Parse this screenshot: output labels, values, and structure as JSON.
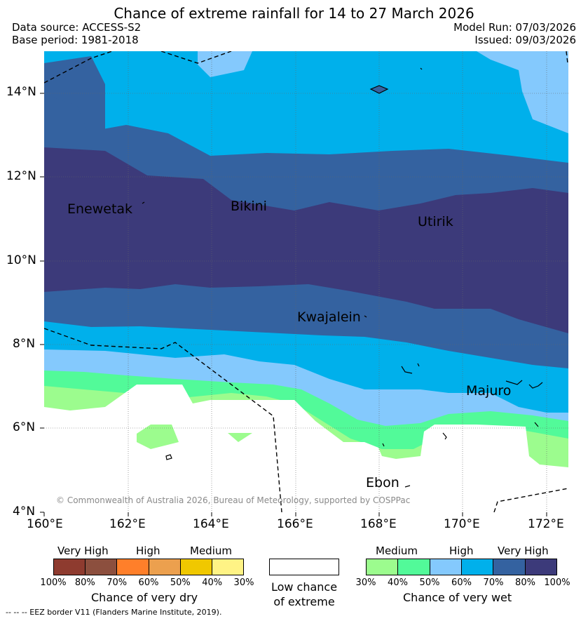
{
  "title": "Chance of extreme rainfall for 14 to 27 March 2026",
  "header": {
    "data_source": "Data source: ACCESS-S2",
    "base_period": "Base period: 1981-2018",
    "model_run": "Model Run: 07/03/2026",
    "issued": "Issued: 09/03/2026"
  },
  "map": {
    "lat_labels": [
      "14°N",
      "12°N",
      "10°N",
      "8°N",
      "6°N",
      "4°N"
    ],
    "lon_labels": [
      "160°E",
      "162°E",
      "164°E",
      "166°E",
      "168°E",
      "170°E",
      "172°E"
    ],
    "places": [
      "Enewetak",
      "Bikini",
      "Utirik",
      "Kwajalein",
      "Majuro",
      "Ebon"
    ],
    "copyright": "© Commonwealth of Australia 2026, Bureau of Meteorology, supported by COSPPac"
  },
  "legend": {
    "dry": {
      "categories": [
        "Very High",
        "High",
        "Medium"
      ],
      "ticks": [
        "100%",
        "80%",
        "70%",
        "60%",
        "50%",
        "40%",
        "30%"
      ],
      "colors": [
        "#8e3b2f",
        "#8c4f3e",
        "#ff7f2a",
        "#eca04e",
        "#f0c800",
        "#fff385"
      ],
      "title": "Chance of very dry"
    },
    "neutral": {
      "line1": "Low chance",
      "line2": "of extreme"
    },
    "wet": {
      "categories": [
        "Medium",
        "High",
        "Very High"
      ],
      "ticks": [
        "30%",
        "40%",
        "50%",
        "60%",
        "70%",
        "80%",
        "100%"
      ],
      "colors": [
        "#9cfc8e",
        "#52fa99",
        "#84c9fd",
        "#00b0eb",
        "#3462a0",
        "#3c3a7a"
      ],
      "title": "Chance of very wet"
    }
  },
  "footer": "-- -- -- EEZ border V11 (Flanders Marine Institute, 2019).",
  "colors": {
    "very_high_wet": "#3c3a7a",
    "high_wet_70": "#3462a0",
    "high_wet_60": "#00b0eb",
    "medium_wet_50": "#84c9fd",
    "medium_wet_40": "#52fa99",
    "low_wet_30": "#9cfc8e",
    "neutral": "#ffffff"
  }
}
